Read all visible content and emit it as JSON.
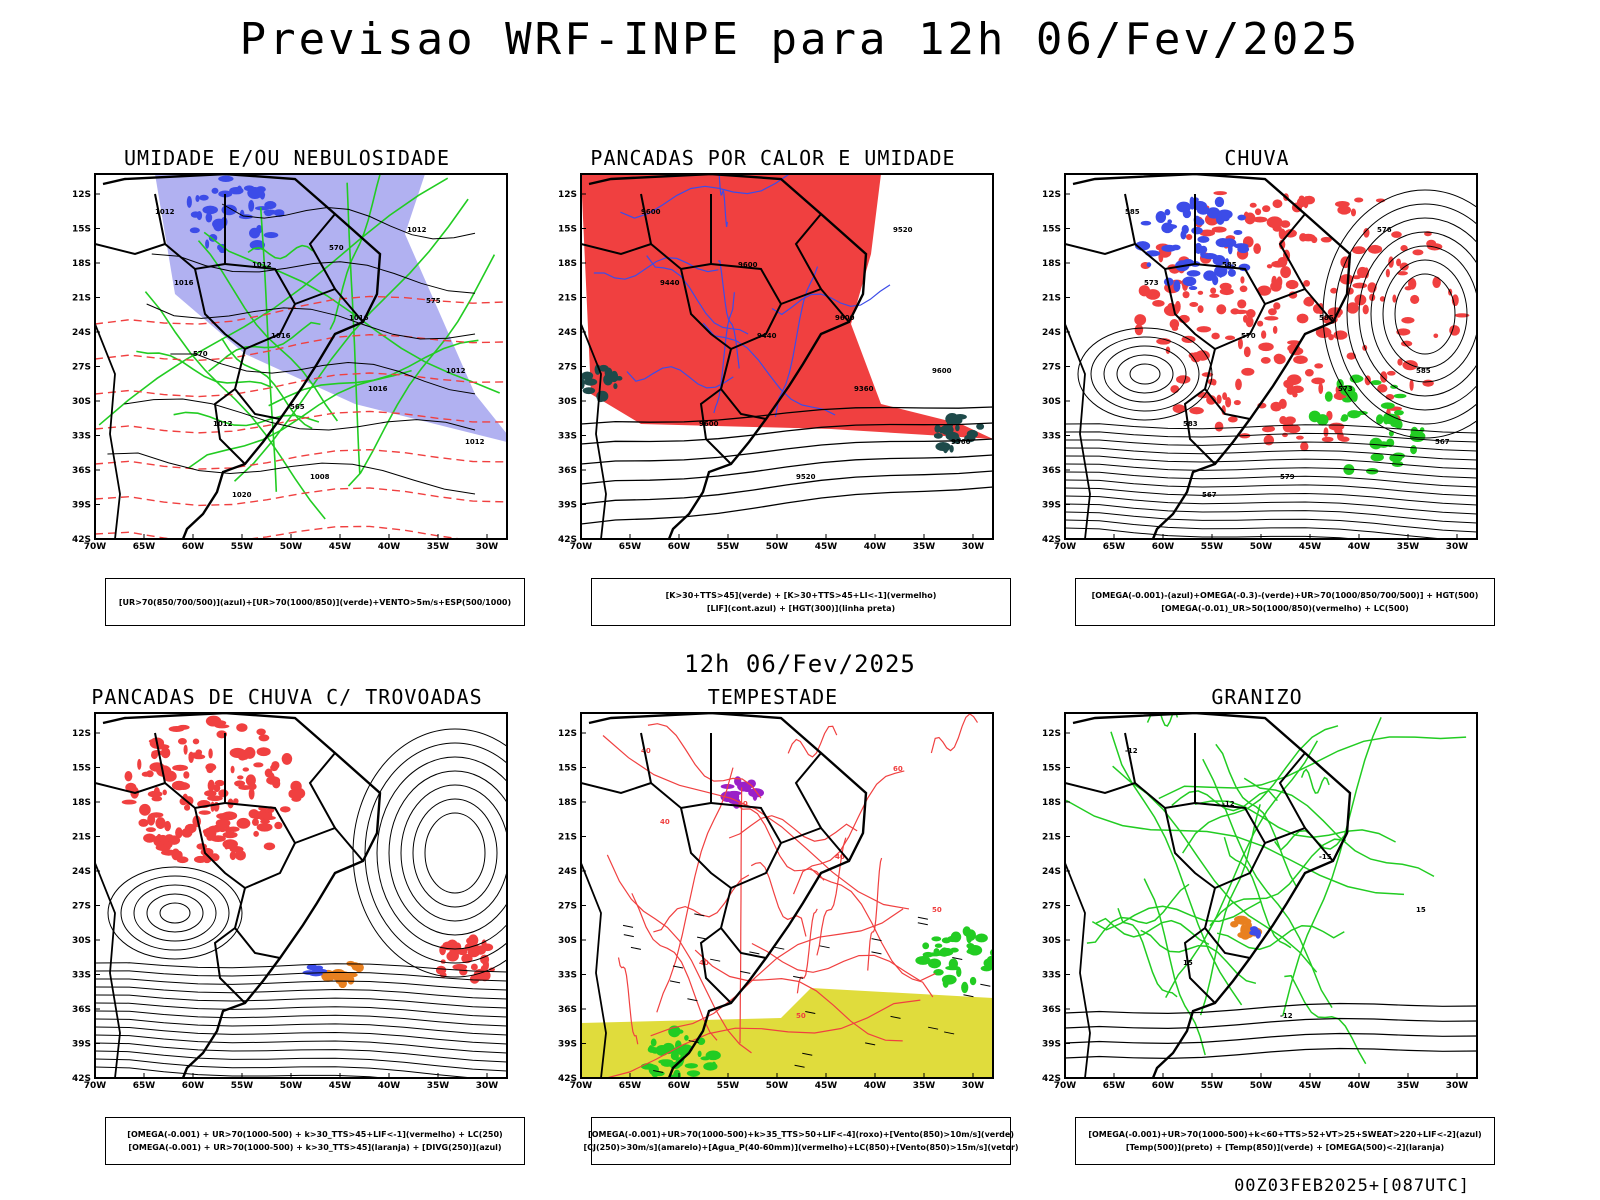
{
  "title": "Previsao WRF-INPE  para 12h 06/Fev/2025",
  "mid_title": "12h 06/Fev/2025",
  "footer": "00Z03FEB2025+[087UTC]",
  "axes": {
    "lat_labels": [
      "12S",
      "15S",
      "18S",
      "21S",
      "24S",
      "27S",
      "30S",
      "33S",
      "36S",
      "39S",
      "42S"
    ],
    "lon_labels": [
      "70W",
      "65W",
      "60W",
      "55W",
      "50W",
      "45W",
      "40W",
      "35W",
      "30W"
    ]
  },
  "colors": {
    "red": "#f04040",
    "blue": "#3c4ce8",
    "lightblue": "#a8a8f0",
    "green": "#22cc22",
    "darkteal": "#1e4a4a",
    "yellow": "#e0dc3c",
    "orange": "#e88020",
    "purple": "#9a20c8"
  },
  "panels": [
    {
      "title": "UMIDADE E/OU NEBULOSIDADE",
      "legend": [
        "[UR>70(850/700/500)](azul)+[UR>70(1000/850)](verde)+VENTO>5m/s+ESP(500/1000)"
      ],
      "labels": [
        "1012",
        "1012",
        "1016",
        "1012",
        "1012",
        "1008",
        "1012",
        "1016",
        "1016",
        "1016",
        "1012",
        "1020",
        "570",
        "575",
        "570",
        "565"
      ]
    },
    {
      "title": "PANCADAS POR CALOR E UMIDADE",
      "legend": [
        "[K>30+TTS>45](verde) + [K>30+TTS>45+LI<-1](vermelho)",
        "[LIF](cont.azul) + [HGT(300)](linha preta)"
      ],
      "labels": [
        "9600",
        "9600",
        "9600",
        "9600",
        "9600",
        "9520",
        "9520",
        "9440",
        "9440",
        "9360",
        "9360"
      ]
    },
    {
      "title": "CHUVA",
      "legend": [
        "[OMEGA(-0.001)-(azul)+OMEGA(-0.3)-(verde)+UR>70(1000/850/700/500)] + HGT(500)",
        "[OMEGA(-0.01)_UR>50(1000/850)(vermelho) + LC(500)"
      ],
      "labels": [
        "585",
        "585",
        "585",
        "585",
        "583",
        "579",
        "576",
        "573",
        "570",
        "573",
        "567",
        "567"
      ]
    },
    {
      "title": "PANCADAS DE CHUVA C/ TROVOADAS",
      "legend": [
        "[OMEGA(-0.001) + UR>70(1000-500) + k>30_TTS>45+LIF<-1](vermelho) + LC(250)",
        "[OMEGA(-0.001) + UR>70(1000-500) + k>30_TTS>45](laranja) + [DIVG(250)](azul)"
      ],
      "labels": []
    },
    {
      "title": "TEMPESTADE",
      "legend": [
        "[OMEGA(-0.001)+UR>70(1000-500)+k>35_TTS>50+LIF<-4](roxo)+[Vento(850)>10m/s](verde)",
        "[CJ(250)>30m/s](amarelo)+[Agua_P(40-60mm)](vermelho)+LC(850)+[Vento(850)>15m/s](vetor)"
      ],
      "labels": [
        "40",
        "40",
        "40",
        "50",
        "40",
        "50",
        "60",
        "40"
      ]
    },
    {
      "title": "GRANIZO",
      "legend": [
        "[OMEGA(-0.001)+UR>70(1000-500)+k<60+TTS>52+VT>25+SWEAT>220+LIF<-2](azul)",
        "[Temp(500)](preto) + [Temp(850)](verde) + [OMEGA(500)<-2](laranja)"
      ],
      "labels": [
        "-12",
        "-12",
        "-15",
        "15",
        "15",
        "-12"
      ]
    }
  ]
}
